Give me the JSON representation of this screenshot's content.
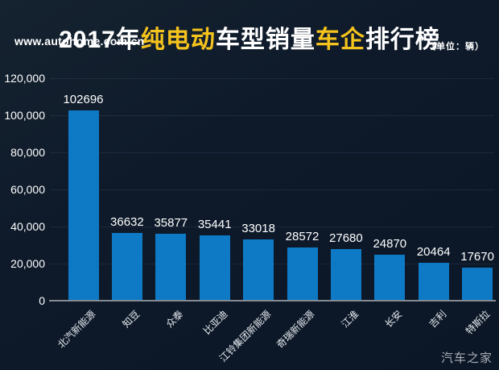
{
  "header": {
    "title_parts": [
      {
        "text": "2017年",
        "color": "#ffffff"
      },
      {
        "text": "纯电动",
        "color": "#f5c31d"
      },
      {
        "text": "车型销量",
        "color": "#ffffff"
      },
      {
        "text": "车企",
        "color": "#f5c31d"
      },
      {
        "text": "排行榜",
        "color": "#ffffff"
      }
    ],
    "site": "www.autohome.com.cn",
    "unit": "（单位：辆）"
  },
  "footer": {
    "watermark": "汽车之家"
  },
  "chart_data": {
    "type": "bar",
    "title": "2017年纯电动车型销量车企排行榜",
    "unit": "辆",
    "categories": [
      "北汽新能源",
      "知豆",
      "众泰",
      "比亚迪",
      "江铃集团新能源",
      "奇瑞新能源",
      "江淮",
      "长安",
      "吉利",
      "特斯拉"
    ],
    "values": [
      102696,
      36632,
      35877,
      35441,
      33018,
      28572,
      27680,
      24870,
      20464,
      17670
    ],
    "xlabel": "",
    "ylabel": "",
    "ylim": [
      0,
      120000
    ],
    "ytick_step": 20000,
    "ytick_labels": [
      "0",
      "20,000",
      "40,000",
      "60,000",
      "80,000",
      "100,000",
      "120,000"
    ],
    "grid": true,
    "legend": "none",
    "bar_color": "#0e7ac6",
    "value_label_color": "#ffffff",
    "axis_line_color": "#858b95",
    "background_color": "#0e1a2a"
  }
}
